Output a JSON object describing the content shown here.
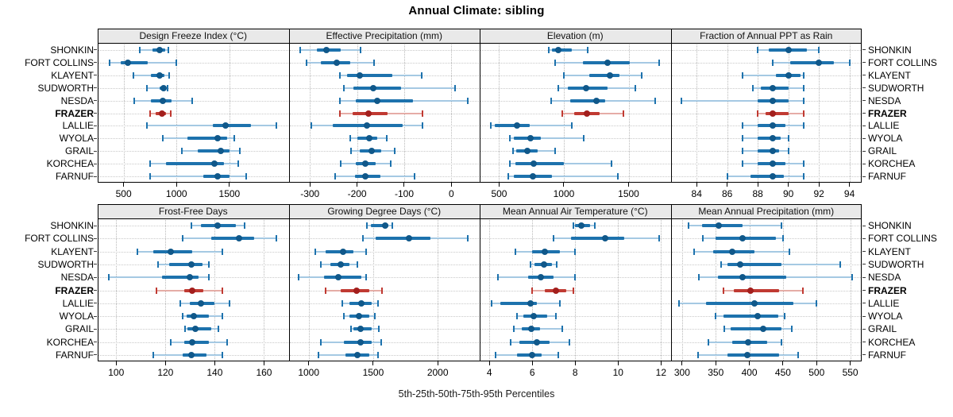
{
  "title": "Annual Climate: sibling",
  "caption": "5th-25th-50th-75th-95th Percentiles",
  "colors": {
    "normal": "#1d72ad",
    "normal_light": "#a5c9e3",
    "normal_dot": "#10588a",
    "highlight": "#c03a32",
    "highlight_light": "#e5aca6",
    "highlight_dot": "#a31f1d",
    "header_bg": "#e9e9e9",
    "grid": "#c9c9c9",
    "axis_text": "#000000"
  },
  "stations": [
    "SHONKIN",
    "FORT COLLINS",
    "KLAYENT",
    "SUDWORTH",
    "NESDA",
    "FRAZER",
    "LALLIE",
    "WYOLA",
    "GRAIL",
    "KORCHEA",
    "FARNUF"
  ],
  "highlight_station": "FRAZER",
  "chart_data": {
    "type": "dot-whisker percentile plot (5th-25th-50th-75th-95th)",
    "percentiles": [
      5,
      25,
      50,
      75,
      95
    ],
    "grid": "2 rows x 4 columns of panels, dotted gridlines, shared station axis",
    "panels": [
      {
        "title": "Design Freeze Index (°C)",
        "ticks": [
          500,
          1000,
          1500
        ],
        "domain": [
          255,
          2060
        ],
        "values": [
          [
            655,
            775,
            840,
            890,
            925
          ],
          [
            365,
            470,
            540,
            730,
            1000
          ],
          [
            590,
            760,
            840,
            885,
            930
          ],
          [
            720,
            840,
            880,
            900,
            915
          ],
          [
            600,
            760,
            870,
            950,
            1150
          ],
          [
            750,
            800,
            860,
            900,
            945
          ],
          [
            720,
            1340,
            1460,
            1700,
            1940
          ],
          [
            870,
            1100,
            1390,
            1480,
            1545
          ],
          [
            1050,
            1200,
            1420,
            1500,
            1600
          ],
          [
            750,
            900,
            1360,
            1450,
            1580
          ],
          [
            750,
            1250,
            1390,
            1500,
            1655
          ]
        ]
      },
      {
        "title": "Effective Precipitation (mm)",
        "ticks": [
          -300,
          -200,
          -100,
          0
        ],
        "domain": [
          -345,
          60
        ],
        "values": [
          [
            -320,
            -285,
            -265,
            -235,
            -192
          ],
          [
            -307,
            -276,
            -243,
            -214,
            -164
          ],
          [
            -237,
            -222,
            -194,
            -126,
            -63
          ],
          [
            -228,
            -208,
            -166,
            -106,
            7
          ],
          [
            -237,
            -202,
            -158,
            -81,
            35
          ],
          [
            -237,
            -209,
            -175,
            -135,
            -62
          ],
          [
            -297,
            -251,
            -179,
            -103,
            -61
          ],
          [
            -215,
            -199,
            -174,
            -157,
            -137
          ],
          [
            -212,
            -194,
            -169,
            -149,
            -120
          ],
          [
            -235,
            -202,
            -183,
            -160,
            -129
          ],
          [
            -247,
            -205,
            -183,
            -151,
            -78
          ]
        ]
      },
      {
        "title": "Elevation (m)",
        "ticks": [
          500,
          1000,
          1500
        ],
        "domain": [
          350,
          1825
        ],
        "values": [
          [
            885,
            910,
            960,
            1060,
            1185
          ],
          [
            930,
            1145,
            1340,
            1510,
            1735
          ],
          [
            1000,
            1195,
            1355,
            1430,
            1600
          ],
          [
            960,
            1030,
            1170,
            1335,
            1550
          ],
          [
            900,
            1050,
            1250,
            1320,
            1705
          ],
          [
            990,
            1080,
            1175,
            1275,
            1460
          ],
          [
            435,
            465,
            640,
            735,
            1060
          ],
          [
            580,
            615,
            740,
            825,
            1155
          ],
          [
            605,
            635,
            715,
            795,
            930
          ],
          [
            580,
            625,
            765,
            1000,
            1370
          ],
          [
            570,
            615,
            760,
            910,
            1420
          ]
        ]
      },
      {
        "title": "Fraction of Annual PPT as Rain",
        "ticks": [
          84,
          86,
          88,
          90,
          92,
          94
        ],
        "domain": [
          82.3,
          94.8
        ],
        "values": [
          [
            88,
            88.7,
            90,
            91.2,
            92
          ],
          [
            89,
            90.1,
            92,
            93,
            94
          ],
          [
            87,
            89.2,
            90,
            90.8,
            91
          ],
          [
            87.7,
            88.2,
            89,
            90,
            91
          ],
          [
            83,
            88,
            89,
            90,
            91
          ],
          [
            88,
            88.5,
            89,
            90,
            91
          ],
          [
            87,
            88,
            89,
            89.8,
            91
          ],
          [
            87,
            88,
            89,
            89.5,
            90
          ],
          [
            87,
            88,
            89,
            89.4,
            90
          ],
          [
            87,
            88,
            89,
            89.8,
            91
          ],
          [
            86,
            87.5,
            89,
            89.7,
            91
          ]
        ]
      },
      {
        "title": "Frost-Free Days",
        "ticks": [
          100,
          120,
          140,
          160
        ],
        "domain": [
          92.5,
          170
        ],
        "values": [
          [
            130.5,
            134.5,
            141,
            148.5,
            152
          ],
          [
            127,
            138.5,
            150,
            156,
            165
          ],
          [
            108.5,
            115,
            122,
            131,
            143
          ],
          [
            117,
            121.5,
            130.5,
            135,
            137.5
          ],
          [
            97,
            118.5,
            130,
            133.5,
            137.5
          ],
          [
            116.5,
            127.5,
            131,
            135.5,
            143
          ],
          [
            126,
            130,
            134.5,
            140,
            146
          ],
          [
            127,
            128.5,
            131.5,
            137.5,
            143
          ],
          [
            128,
            129,
            132,
            138.5,
            141.5
          ],
          [
            122,
            127.5,
            131,
            137.5,
            145
          ],
          [
            115,
            127,
            130.5,
            136.5,
            143
          ]
        ]
      },
      {
        "title": "Growing Degree Days (°C)",
        "ticks": [
          1000,
          1500,
          2000
        ],
        "domain": [
          845,
          2325
        ],
        "values": [
          [
            1450,
            1480,
            1590,
            1615,
            1650
          ],
          [
            1420,
            1520,
            1775,
            1945,
            2230
          ],
          [
            1050,
            1130,
            1265,
            1345,
            1445
          ],
          [
            1095,
            1170,
            1250,
            1315,
            1380
          ],
          [
            920,
            1120,
            1230,
            1405,
            1445
          ],
          [
            1130,
            1250,
            1370,
            1470,
            1565
          ],
          [
            1260,
            1315,
            1405,
            1490,
            1540
          ],
          [
            1270,
            1315,
            1390,
            1470,
            1515
          ],
          [
            1330,
            1345,
            1400,
            1485,
            1545
          ],
          [
            1095,
            1270,
            1400,
            1490,
            1560
          ],
          [
            1075,
            1285,
            1380,
            1470,
            1535
          ]
        ]
      },
      {
        "title": "Mean Annual Air Temperature (°C)",
        "ticks": [
          4,
          6,
          8,
          10,
          12
        ],
        "domain": [
          3.55,
          12.45
        ],
        "values": [
          [
            7.9,
            8,
            8.3,
            8.7,
            8.9
          ],
          [
            7,
            7.8,
            9.4,
            10.3,
            11.9
          ],
          [
            5.2,
            6,
            6.6,
            7.3,
            8
          ],
          [
            5.9,
            6.1,
            6.55,
            6.9,
            7.15
          ],
          [
            4.4,
            5.8,
            6.4,
            7,
            8
          ],
          [
            6,
            6.6,
            7.1,
            7.6,
            7.9
          ],
          [
            4.1,
            4.5,
            5.9,
            6.2,
            7.3
          ],
          [
            5.3,
            5.6,
            6.05,
            6.7,
            7.1
          ],
          [
            5.15,
            5.5,
            5.95,
            6.35,
            7.4
          ],
          [
            5,
            5.4,
            6.2,
            6.8,
            7.75
          ],
          [
            4.3,
            5.3,
            6,
            6.45,
            7.2
          ]
        ]
      },
      {
        "title": "Mean Annual Precipitation (mm)",
        "ticks": [
          300,
          350,
          400,
          450,
          500,
          550
        ],
        "domain": [
          283,
          567
        ],
        "values": [
          [
            310,
            330,
            355,
            390,
            448
          ],
          [
            331,
            350,
            390,
            440,
            450
          ],
          [
            318,
            346,
            374,
            408,
            460
          ],
          [
            358,
            368,
            386,
            448,
            535
          ],
          [
            325,
            353,
            390,
            455,
            553
          ],
          [
            362,
            377,
            402,
            444,
            480
          ],
          [
            295,
            336,
            408,
            465,
            500
          ],
          [
            350,
            362,
            412,
            443,
            452
          ],
          [
            363,
            372,
            420,
            448,
            463
          ],
          [
            339,
            374,
            398,
            427,
            448
          ],
          [
            324,
            367,
            397,
            444,
            472
          ]
        ]
      }
    ]
  }
}
